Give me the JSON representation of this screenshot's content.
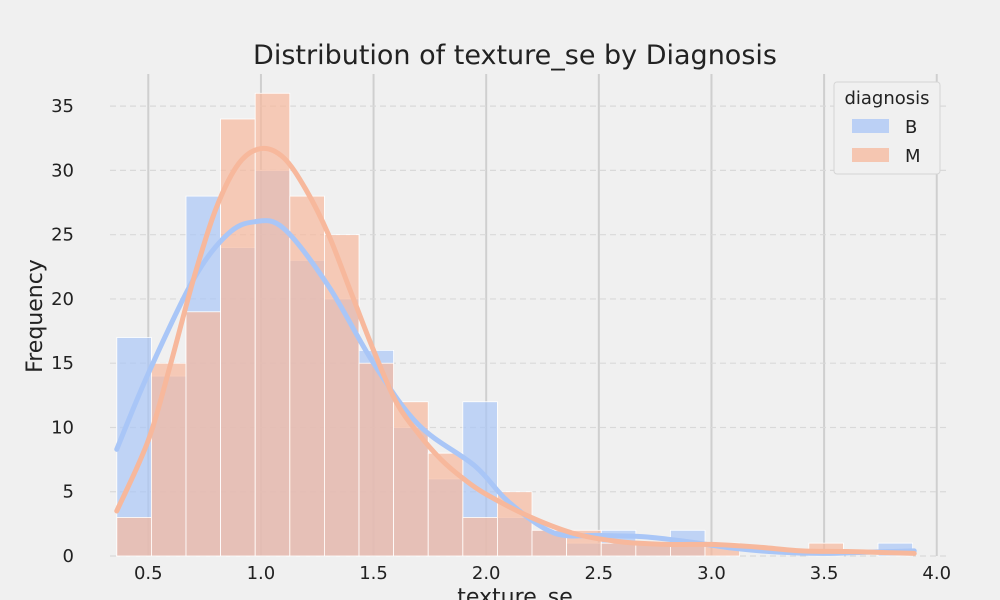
{
  "chart_data": {
    "type": "histogram",
    "title": "Distribution of texture_se by Diagnosis",
    "xlabel": "texture_se",
    "ylabel": "Frequency",
    "xlim": [
      0.33,
      4.05
    ],
    "ylim": [
      0,
      37.5
    ],
    "x_ticks": [
      "0.5",
      "1.0",
      "1.5",
      "2.0",
      "2.5",
      "3.0",
      "3.5",
      "4.0"
    ],
    "y_ticks": [
      "0",
      "5",
      "10",
      "15",
      "20",
      "25",
      "30",
      "35"
    ],
    "grid": true,
    "legend": {
      "title": "diagnosis",
      "position": "top-right"
    },
    "bins": [
      0.3602,
      0.5138,
      0.6674,
      0.821,
      0.9746,
      1.1282,
      1.2818,
      1.4354,
      1.589,
      1.7426,
      1.8962,
      2.0498,
      2.2034,
      2.357,
      2.5106,
      2.6642,
      2.8178,
      2.9714,
      3.125,
      3.2786,
      3.4322,
      3.5858,
      3.7394,
      3.893
    ],
    "series": [
      {
        "name": "B",
        "color": "#a9c6f7",
        "values": [
          17,
          14,
          28,
          24,
          30,
          23,
          20,
          16,
          10,
          6,
          12,
          3,
          2,
          1,
          2,
          1,
          2,
          0,
          0,
          0,
          0,
          0,
          1
        ],
        "kde_x": [
          0.36,
          0.5,
          0.7,
          0.85,
          0.97,
          1.1,
          1.3,
          1.5,
          1.7,
          1.95,
          2.1,
          2.3,
          2.5,
          2.7,
          2.9,
          3.1,
          3.3,
          3.5,
          3.7,
          3.9
        ],
        "kde_y": [
          8.3,
          14.2,
          21.5,
          25,
          26,
          25.5,
          21,
          15,
          10.2,
          7,
          4.2,
          1.8,
          1.6,
          1.5,
          1.1,
          0.6,
          0.3,
          0.2,
          0.3,
          0.4
        ]
      },
      {
        "name": "M",
        "color": "#f7b89c",
        "values": [
          3,
          15,
          19,
          34,
          36,
          28,
          25,
          15,
          12,
          8,
          3,
          5,
          2,
          2,
          1,
          1,
          1,
          1,
          0,
          0,
          1,
          0,
          0
        ],
        "kde_x": [
          0.36,
          0.5,
          0.6,
          0.7,
          0.8,
          0.9,
          1.0,
          1.1,
          1.2,
          1.3,
          1.4,
          1.5,
          1.6,
          1.7,
          1.8,
          1.9,
          2.0,
          2.2,
          2.4,
          2.6,
          2.8,
          3.0,
          3.2,
          3.4,
          3.6,
          3.8,
          3.9
        ],
        "kde_y": [
          3.5,
          9,
          15,
          21.5,
          27,
          30.5,
          31.7,
          31,
          28.5,
          25,
          20.5,
          16,
          12,
          9.5,
          7.5,
          6,
          4.8,
          3,
          1.7,
          1.1,
          0.9,
          0.9,
          0.7,
          0.4,
          0.35,
          0.25,
          0.2
        ]
      }
    ]
  }
}
